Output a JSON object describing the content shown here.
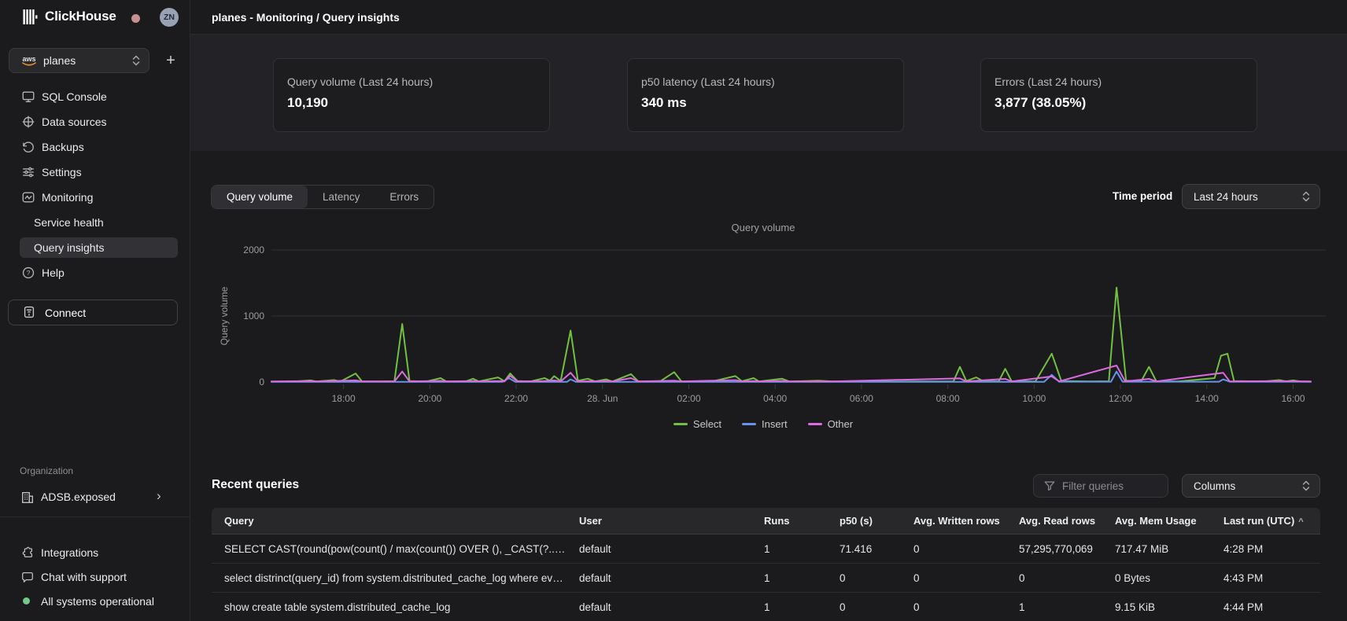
{
  "app": {
    "brand": "ClickHouse",
    "avatar_initials": "ZN"
  },
  "sidebar": {
    "service_selector": {
      "value": "planes",
      "provider": "aws"
    },
    "nav": [
      {
        "label": "SQL Console"
      },
      {
        "label": "Data sources"
      },
      {
        "label": "Backups"
      },
      {
        "label": "Settings"
      },
      {
        "label": "Monitoring"
      },
      {
        "label": "Service health"
      },
      {
        "label": "Query insights"
      },
      {
        "label": "Help"
      }
    ],
    "connect_label": "Connect",
    "organization": {
      "heading": "Organization",
      "name": "ADSB.exposed"
    },
    "footer": [
      {
        "label": "Integrations"
      },
      {
        "label": "Chat with support"
      },
      {
        "label": "All systems operational",
        "status_color": "#74c988"
      }
    ]
  },
  "header": {
    "title": "planes - Monitoring / Query insights"
  },
  "stats": [
    {
      "label": "Query volume (Last 24 hours)",
      "value": "10,190"
    },
    {
      "label": "p50 latency (Last 24 hours)",
      "value": "340 ms"
    },
    {
      "label": "Errors (Last 24 hours)",
      "value": "3,877 (38.05%)"
    }
  ],
  "chart_controls": {
    "tabs": [
      "Query volume",
      "Latency",
      "Errors"
    ],
    "active_tab": "Query volume",
    "time_period_label": "Time period",
    "time_period_value": "Last 24 hours"
  },
  "chart_data": {
    "type": "line",
    "title": "Query volume",
    "ylabel": "Query volume",
    "ylim": [
      0,
      2000
    ],
    "y_ticks": [
      0,
      1000,
      2000
    ],
    "grid": true,
    "legend_position": "bottom",
    "t_domain": [
      0,
      24.08
    ],
    "t_note": "t = hours since ~16:20 on 27 Jun; tick labels are clock times",
    "x_ticks": [
      {
        "t": 1.67,
        "label": "18:00"
      },
      {
        "t": 3.67,
        "label": "20:00"
      },
      {
        "t": 5.67,
        "label": "22:00"
      },
      {
        "t": 7.67,
        "label": "28. Jun"
      },
      {
        "t": 9.67,
        "label": "02:00"
      },
      {
        "t": 11.67,
        "label": "04:00"
      },
      {
        "t": 13.67,
        "label": "06:00"
      },
      {
        "t": 15.67,
        "label": "08:00"
      },
      {
        "t": 17.67,
        "label": "10:00"
      },
      {
        "t": 19.67,
        "label": "12:00"
      },
      {
        "t": 21.67,
        "label": "14:00"
      },
      {
        "t": 23.67,
        "label": "16:00"
      }
    ],
    "series": [
      {
        "name": "Select",
        "color": "#72bf44",
        "points": [
          [
            0,
            6
          ],
          [
            0.5,
            6
          ],
          [
            0.9,
            25
          ],
          [
            1.05,
            8
          ],
          [
            1.45,
            30
          ],
          [
            1.6,
            8
          ],
          [
            1.95,
            130
          ],
          [
            2.1,
            10
          ],
          [
            2.5,
            8
          ],
          [
            2.85,
            12
          ],
          [
            3.03,
            880
          ],
          [
            3.2,
            15
          ],
          [
            3.6,
            10
          ],
          [
            3.92,
            60
          ],
          [
            4.05,
            10
          ],
          [
            4.5,
            10
          ],
          [
            4.67,
            50
          ],
          [
            4.8,
            10
          ],
          [
            5.25,
            70
          ],
          [
            5.4,
            12
          ],
          [
            5.53,
            130
          ],
          [
            5.7,
            15
          ],
          [
            6.0,
            10
          ],
          [
            6.33,
            60
          ],
          [
            6.45,
            20
          ],
          [
            6.55,
            90
          ],
          [
            6.7,
            15
          ],
          [
            6.93,
            780
          ],
          [
            7.1,
            20
          ],
          [
            7.33,
            50
          ],
          [
            7.5,
            10
          ],
          [
            7.75,
            40
          ],
          [
            7.9,
            8
          ],
          [
            8.33,
            120
          ],
          [
            8.5,
            10
          ],
          [
            9.0,
            8
          ],
          [
            9.33,
            150
          ],
          [
            9.5,
            10
          ],
          [
            10.2,
            8
          ],
          [
            10.75,
            90
          ],
          [
            10.9,
            12
          ],
          [
            11.17,
            60
          ],
          [
            11.3,
            8
          ],
          [
            11.83,
            50
          ],
          [
            12.0,
            8
          ],
          [
            12.67,
            20
          ],
          [
            13.0,
            8
          ],
          [
            13.67,
            15
          ],
          [
            14.2,
            6
          ],
          [
            15.0,
            8
          ],
          [
            15.8,
            10
          ],
          [
            15.95,
            230
          ],
          [
            16.1,
            15
          ],
          [
            16.33,
            70
          ],
          [
            16.5,
            10
          ],
          [
            16.85,
            12
          ],
          [
            17.0,
            200
          ],
          [
            17.15,
            12
          ],
          [
            17.7,
            10
          ],
          [
            18.08,
            430
          ],
          [
            18.3,
            15
          ],
          [
            19.0,
            10
          ],
          [
            19.4,
            12
          ],
          [
            19.58,
            1430
          ],
          [
            19.8,
            20
          ],
          [
            20.15,
            12
          ],
          [
            20.33,
            230
          ],
          [
            20.5,
            12
          ],
          [
            21.0,
            8
          ],
          [
            21.85,
            60
          ],
          [
            22.0,
            400
          ],
          [
            22.15,
            430
          ],
          [
            22.3,
            15
          ],
          [
            23.0,
            8
          ],
          [
            23.35,
            30
          ],
          [
            23.5,
            10
          ],
          [
            23.67,
            25
          ],
          [
            23.85,
            8
          ],
          [
            24.08,
            6
          ]
        ]
      },
      {
        "name": "Insert",
        "color": "#6494ed",
        "points": [
          [
            0,
            4
          ],
          [
            5.35,
            4
          ],
          [
            5.5,
            60
          ],
          [
            5.65,
            4
          ],
          [
            6.85,
            4
          ],
          [
            6.93,
            40
          ],
          [
            7.05,
            4
          ],
          [
            17.9,
            4
          ],
          [
            18.08,
            110
          ],
          [
            18.25,
            5
          ],
          [
            19.45,
            5
          ],
          [
            19.58,
            160
          ],
          [
            19.72,
            5
          ],
          [
            21.95,
            5
          ],
          [
            22.05,
            40
          ],
          [
            22.2,
            5
          ],
          [
            24.08,
            4
          ]
        ]
      },
      {
        "name": "Other",
        "color": "#dd6ade",
        "points": [
          [
            0,
            8
          ],
          [
            0.9,
            14
          ],
          [
            1.05,
            8
          ],
          [
            1.95,
            25
          ],
          [
            2.1,
            9
          ],
          [
            2.85,
            10
          ],
          [
            3.03,
            160
          ],
          [
            3.2,
            10
          ],
          [
            3.92,
            18
          ],
          [
            4.05,
            9
          ],
          [
            4.67,
            14
          ],
          [
            4.8,
            9
          ],
          [
            5.25,
            14
          ],
          [
            5.4,
            10
          ],
          [
            5.53,
            95
          ],
          [
            5.7,
            10
          ],
          [
            6.33,
            14
          ],
          [
            6.55,
            25
          ],
          [
            6.7,
            10
          ],
          [
            6.93,
            140
          ],
          [
            7.1,
            10
          ],
          [
            7.75,
            14
          ],
          [
            7.9,
            9
          ],
          [
            8.33,
            60
          ],
          [
            8.5,
            9
          ],
          [
            9.33,
            22
          ],
          [
            9.5,
            9
          ],
          [
            10.75,
            28
          ],
          [
            10.9,
            9
          ],
          [
            11.17,
            14
          ],
          [
            11.3,
            9
          ],
          [
            11.83,
            18
          ],
          [
            12.0,
            9
          ],
          [
            13.0,
            9
          ],
          [
            15.95,
            55
          ],
          [
            16.1,
            9
          ],
          [
            17.0,
            48
          ],
          [
            17.15,
            9
          ],
          [
            18.08,
            85
          ],
          [
            18.25,
            10
          ],
          [
            19.58,
            250
          ],
          [
            19.78,
            9
          ],
          [
            20.33,
            48
          ],
          [
            20.5,
            9
          ],
          [
            22.05,
            140
          ],
          [
            22.2,
            10
          ],
          [
            23.35,
            14
          ],
          [
            23.67,
            12
          ],
          [
            24.08,
            8
          ]
        ]
      }
    ]
  },
  "recent_queries": {
    "heading": "Recent queries",
    "filter_placeholder": "Filter queries",
    "columns_label": "Columns",
    "table": {
      "headers": [
        "Query",
        "User",
        "Runs",
        "p50 (s)",
        "Avg. Written rows",
        "Avg. Read rows",
        "Avg. Mem Usage",
        "Last run (UTC)"
      ],
      "sort_column": "Last run (UTC)",
      "sort_direction": "asc",
      "rows": [
        {
          "cells": [
            "SELECT CAST(round(pow(count() / max(count()) OVER (), _CAST(?..)) * ...",
            "default",
            "1",
            "71.416",
            "0",
            "57,295,770,069",
            "717.47 MiB",
            "4:28 PM"
          ]
        },
        {
          "cells": [
            "select distrinct(query_id) from system.distributed_cache_log where eve...",
            "default",
            "1",
            "0",
            "0",
            "0",
            "0 Bytes",
            "4:43 PM"
          ]
        },
        {
          "cells": [
            "show create table system.distributed_cache_log",
            "default",
            "1",
            "0",
            "0",
            "1",
            "9.15 KiB",
            "4:44 PM"
          ]
        }
      ]
    }
  }
}
